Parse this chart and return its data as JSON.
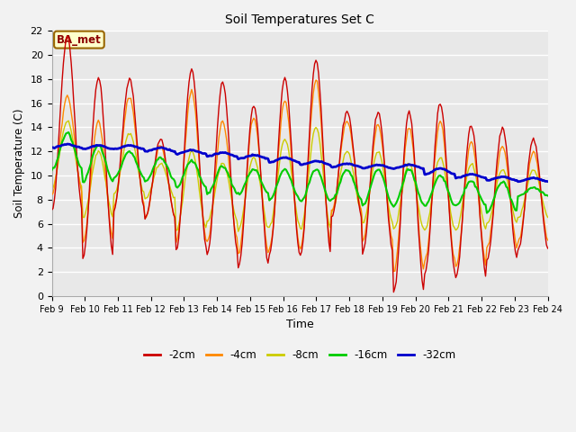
{
  "title": "Soil Temperatures Set C",
  "xlabel": "Time",
  "ylabel": "Soil Temperature (C)",
  "annotation": "BA_met",
  "ylim": [
    0,
    22
  ],
  "fig_bg_color": "#f2f2f2",
  "plot_bg_color": "#e8e8e8",
  "series_colors": {
    "-2cm": "#cc0000",
    "-4cm": "#ff8800",
    "-8cm": "#cccc00",
    "-16cm": "#00cc00",
    "-32cm": "#0000cc"
  },
  "xtick_labels": [
    "Feb 9",
    "Feb 10",
    "Feb 11",
    "Feb 12",
    "Feb 13",
    "Feb 14",
    "Feb 15",
    "Feb 16",
    "Feb 17",
    "Feb 18",
    "Feb 19",
    "Feb 20",
    "Feb 21",
    "Feb 22",
    "Feb 23",
    "Feb 24"
  ],
  "ytick_labels": [
    "0",
    "2",
    "4",
    "6",
    "8",
    "10",
    "12",
    "14",
    "16",
    "18",
    "20",
    "22"
  ],
  "n_days": 16,
  "ppd": 24
}
